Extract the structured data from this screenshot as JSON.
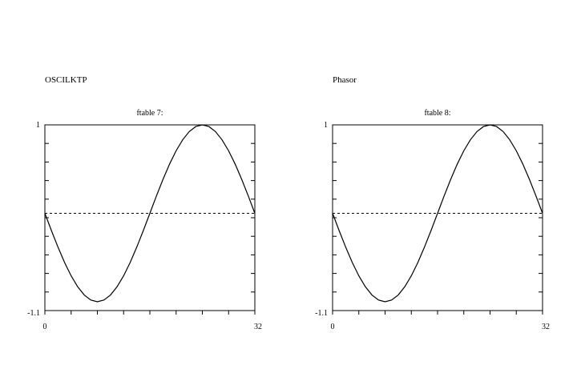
{
  "panels": [
    {
      "heading": "OSCILKTP"
    },
    {
      "heading": "Phasor"
    }
  ],
  "chart_data": [
    {
      "type": "line",
      "title": "ftable 7:",
      "xlabel": "",
      "ylabel": "",
      "xlim": [
        0,
        32
      ],
      "ylim": [
        -1.1,
        1
      ],
      "x_tick_labels": [
        "0",
        "32"
      ],
      "y_tick_labels": [
        "1",
        "-1.1"
      ],
      "reference_line_y": 0,
      "grid": false,
      "series": [
        {
          "x": [
            0,
            1,
            2,
            3,
            4,
            5,
            6,
            7,
            8,
            9,
            10,
            11,
            12,
            13,
            14,
            15,
            16,
            17,
            18,
            19,
            20,
            21,
            22,
            23,
            24,
            25,
            26,
            27,
            28,
            29,
            30,
            31,
            32
          ],
          "y": [
            0,
            -0.196,
            -0.383,
            -0.556,
            -0.707,
            -0.831,
            -0.924,
            -0.981,
            -1,
            -0.981,
            -0.924,
            -0.831,
            -0.707,
            -0.556,
            -0.383,
            -0.196,
            0,
            0.196,
            0.383,
            0.556,
            0.707,
            0.831,
            0.924,
            0.981,
            1,
            0.981,
            0.924,
            0.831,
            0.707,
            0.556,
            0.383,
            0.196,
            0
          ]
        }
      ]
    },
    {
      "type": "line",
      "title": "ftable 8:",
      "xlabel": "",
      "ylabel": "",
      "xlim": [
        0,
        32
      ],
      "ylim": [
        -1.1,
        1
      ],
      "x_tick_labels": [
        "0",
        "32"
      ],
      "y_tick_labels": [
        "1",
        "-1.1"
      ],
      "reference_line_y": 0,
      "grid": false,
      "series": [
        {
          "x": [
            0,
            1,
            2,
            3,
            4,
            5,
            6,
            7,
            8,
            9,
            10,
            11,
            12,
            13,
            14,
            15,
            16,
            17,
            18,
            19,
            20,
            21,
            22,
            23,
            24,
            25,
            26,
            27,
            28,
            29,
            30,
            31,
            32
          ],
          "y": [
            0,
            -0.196,
            -0.383,
            -0.556,
            -0.707,
            -0.831,
            -0.924,
            -0.981,
            -1,
            -0.981,
            -0.924,
            -0.831,
            -0.707,
            -0.556,
            -0.383,
            -0.196,
            0,
            0.196,
            0.383,
            0.556,
            0.707,
            0.831,
            0.924,
            0.981,
            1,
            0.981,
            0.924,
            0.831,
            0.707,
            0.556,
            0.383,
            0.196,
            0
          ]
        }
      ]
    }
  ]
}
